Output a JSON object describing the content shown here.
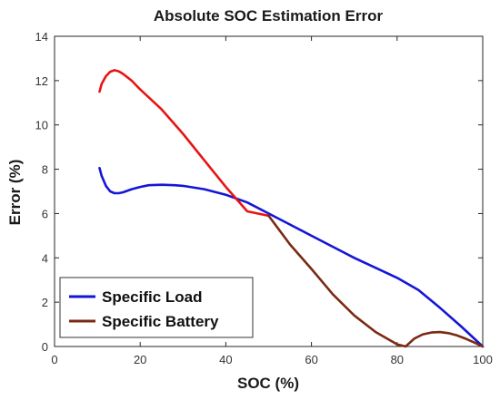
{
  "chart_data": {
    "type": "line",
    "title": "Absolute SOC Estimation Error",
    "xlabel": "SOC (%)",
    "ylabel": "Error (%)",
    "xlim": [
      0,
      100
    ],
    "ylim": [
      0,
      14
    ],
    "xticks": [
      0,
      20,
      40,
      60,
      80,
      100
    ],
    "yticks": [
      0,
      2,
      4,
      6,
      8,
      10,
      12,
      14
    ],
    "grid": false,
    "legend_position": "bottom-left",
    "legend_entries": [
      "Specific Load",
      "Specific Battery"
    ],
    "series": [
      {
        "name": "Specific Load",
        "color": "#1515d6",
        "x": [
          10.5,
          11,
          12,
          13,
          14,
          15,
          16,
          18,
          20,
          22,
          25,
          28,
          30,
          35,
          40,
          45,
          50,
          55,
          60,
          65,
          70,
          75,
          80,
          85,
          90,
          95,
          100
        ],
        "y": [
          8.05,
          7.7,
          7.25,
          7.0,
          6.92,
          6.92,
          6.96,
          7.1,
          7.2,
          7.28,
          7.3,
          7.28,
          7.25,
          7.1,
          6.85,
          6.5,
          6.0,
          5.5,
          5.0,
          4.5,
          4.0,
          3.55,
          3.1,
          2.55,
          1.75,
          0.9,
          0.0
        ]
      },
      {
        "name": "Specific Battery",
        "color_segments": [
          "#e81414",
          "#7a2a12"
        ],
        "color_change_x": 50,
        "x": [
          10.5,
          11,
          12,
          13,
          14,
          15,
          16,
          18,
          20,
          25,
          30,
          35,
          40,
          45,
          50,
          55,
          60,
          65,
          70,
          75,
          80,
          82,
          84,
          86,
          88,
          90,
          92,
          94,
          96,
          98,
          100
        ],
        "y": [
          11.5,
          11.85,
          12.2,
          12.4,
          12.47,
          12.42,
          12.3,
          12.0,
          11.6,
          10.7,
          9.6,
          8.4,
          7.2,
          6.1,
          5.9,
          4.6,
          3.5,
          2.35,
          1.4,
          0.65,
          0.1,
          0.0,
          0.35,
          0.55,
          0.63,
          0.65,
          0.6,
          0.5,
          0.35,
          0.18,
          0.0
        ]
      }
    ]
  }
}
